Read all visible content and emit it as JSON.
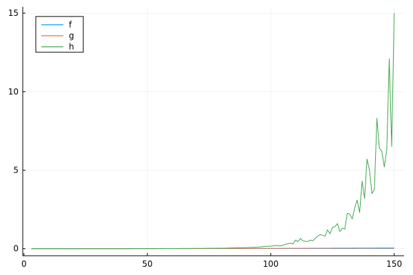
{
  "chart_data": {
    "type": "line",
    "title": "",
    "xlabel": "",
    "ylabel": "",
    "xlim": [
      -0.5,
      154
    ],
    "ylim": [
      -0.45,
      15.4
    ],
    "x_ticks": [
      0,
      50,
      100,
      150
    ],
    "y_ticks": [
      0,
      5,
      10,
      15
    ],
    "grid": true,
    "legend": "top-left",
    "x": {
      "start": 3,
      "end": 150,
      "step": 1
    },
    "series": [
      {
        "name": "f",
        "color": "#009AFA",
        "anchors": [
          [
            3,
            0.0
          ],
          [
            150,
            0.02
          ]
        ]
      },
      {
        "name": "g",
        "color": "#E36F47",
        "anchors": [
          [
            3,
            0.0
          ],
          [
            50,
            0.005
          ],
          [
            100,
            0.02
          ],
          [
            150,
            0.05
          ]
        ]
      },
      {
        "name": "h",
        "color": "#3EA44E",
        "anchors": [
          [
            3,
            0.0
          ],
          [
            40,
            0.0
          ],
          [
            60,
            0.01
          ],
          [
            80,
            0.03
          ],
          [
            90,
            0.07
          ],
          [
            95,
            0.1
          ],
          [
            98,
            0.15
          ],
          [
            100,
            0.16
          ],
          [
            102,
            0.2
          ],
          [
            104,
            0.18
          ],
          [
            106,
            0.28
          ],
          [
            108,
            0.35
          ],
          [
            109,
            0.3
          ],
          [
            110,
            0.55
          ],
          [
            111,
            0.45
          ],
          [
            112,
            0.65
          ],
          [
            113,
            0.5
          ],
          [
            115,
            0.45
          ],
          [
            116,
            0.55
          ],
          [
            117,
            0.5
          ],
          [
            119,
            0.8
          ],
          [
            120,
            0.9
          ],
          [
            121,
            0.85
          ],
          [
            122,
            0.8
          ],
          [
            123,
            1.2
          ],
          [
            124,
            0.95
          ],
          [
            125,
            1.35
          ],
          [
            126,
            1.4
          ],
          [
            127,
            1.6
          ],
          [
            128,
            1.1
          ],
          [
            129,
            1.3
          ],
          [
            130,
            1.25
          ],
          [
            131,
            2.25
          ],
          [
            132,
            2.2
          ],
          [
            133,
            1.9
          ],
          [
            134,
            2.6
          ],
          [
            135,
            3.1
          ],
          [
            136,
            2.3
          ],
          [
            137,
            4.3
          ],
          [
            138,
            3.2
          ],
          [
            139,
            5.7
          ],
          [
            140,
            5.0
          ],
          [
            141,
            3.5
          ],
          [
            142,
            3.8
          ],
          [
            143,
            8.3
          ],
          [
            144,
            6.4
          ],
          [
            145,
            6.2
          ],
          [
            146,
            5.2
          ],
          [
            147,
            6.3
          ],
          [
            148,
            12.1
          ],
          [
            149,
            6.5
          ],
          [
            150,
            15.0
          ]
        ]
      }
    ]
  }
}
